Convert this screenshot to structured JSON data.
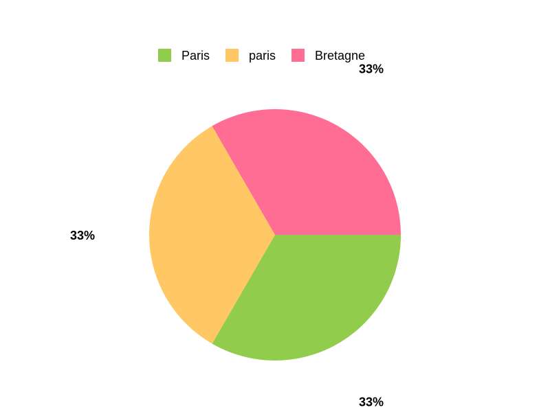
{
  "chart_data": {
    "type": "pie",
    "categories": [
      "Paris",
      "paris",
      "Bretagne"
    ],
    "values": [
      1,
      1,
      1
    ],
    "data_labels": [
      "33%",
      "33%",
      "33%"
    ],
    "colors": [
      "#92cc4c",
      "#ffc864",
      "#ff6c94"
    ],
    "title": "",
    "legend": {
      "placement": "top-center",
      "entries": [
        "Paris",
        "paris",
        "Bretagne"
      ]
    }
  }
}
